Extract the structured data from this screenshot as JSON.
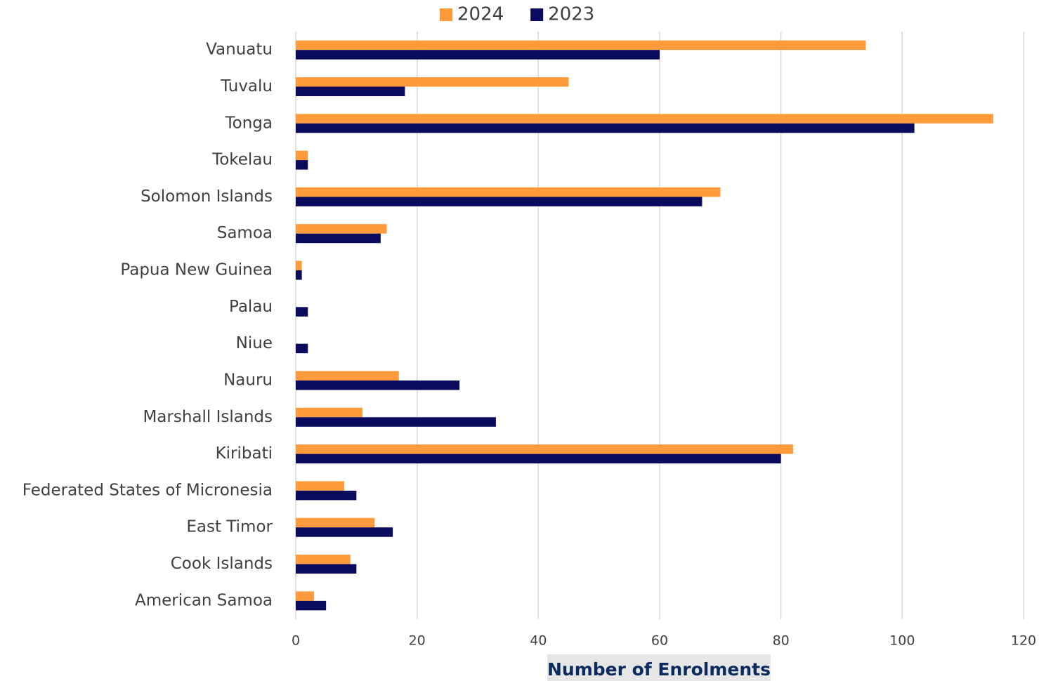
{
  "chart_data": {
    "type": "barh",
    "xlabel": "Number of Enrolments",
    "categories": [
      "Vanuatu",
      "Tuvalu",
      "Tonga",
      "Tokelau",
      "Solomon Islands",
      "Samoa",
      "Papua New Guinea",
      "Palau",
      "Niue",
      "Nauru",
      "Marshall Islands",
      "Kiribati",
      "Federated States of Micronesia",
      "East Timor",
      "Cook Islands",
      "American Samoa"
    ],
    "series": [
      {
        "name": "2024",
        "color": "#ff9b3a",
        "values": [
          94,
          45,
          115,
          2,
          70,
          15,
          1,
          0,
          0,
          17,
          11,
          82,
          8,
          13,
          9,
          3
        ]
      },
      {
        "name": "2023",
        "color": "#0b0b5e",
        "values": [
          60,
          18,
          102,
          2,
          67,
          14,
          1,
          2,
          2,
          27,
          33,
          80,
          10,
          16,
          10,
          5
        ]
      }
    ],
    "xlim": [
      0,
      120
    ],
    "xticks": [
      0,
      20,
      40,
      60,
      80,
      100,
      120
    ],
    "grid": true,
    "legend": "top"
  }
}
